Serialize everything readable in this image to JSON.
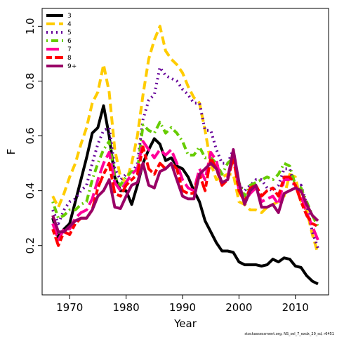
{
  "chart_data": {
    "type": "line",
    "xlabel": "Year",
    "ylabel": "F",
    "footnote": "stockassessment.org, NS_sel_7_exdx_20_sd, r6451",
    "legend": "topleft",
    "x": [
      1967,
      1968,
      1969,
      1970,
      1971,
      1972,
      1973,
      1974,
      1975,
      1976,
      1977,
      1978,
      1979,
      1980,
      1981,
      1982,
      1983,
      1984,
      1985,
      1986,
      1987,
      1988,
      1989,
      1990,
      1991,
      1992,
      1993,
      1994,
      1995,
      1996,
      1997,
      1998,
      1999,
      2000,
      2001,
      2002,
      2003,
      2004,
      2005,
      2006,
      2007,
      2008,
      2009,
      2010,
      2011,
      2012,
      2013,
      2014
    ],
    "xlim": [
      1965.12,
      2015.88
    ],
    "xticks": [
      1970,
      1980,
      1990,
      2000,
      2010
    ],
    "ylim": [
      0.02,
      1.065
    ],
    "yticks": [
      0.2,
      0.4,
      0.6,
      0.8,
      {
        "value": 1,
        "label": "1.0"
      }
    ],
    "series": [
      {
        "name": "3",
        "color": "#000000",
        "dash": "solid",
        "values": [
          0.3,
          0.23,
          0.26,
          0.28,
          0.36,
          0.44,
          0.52,
          0.61,
          0.63,
          0.71,
          0.6,
          0.45,
          0.4,
          0.4,
          0.35,
          0.42,
          0.5,
          0.55,
          0.59,
          0.57,
          0.51,
          0.52,
          0.49,
          0.48,
          0.45,
          0.4,
          0.36,
          0.29,
          0.25,
          0.21,
          0.18,
          0.18,
          0.175,
          0.14,
          0.13,
          0.13,
          0.13,
          0.125,
          0.13,
          0.15,
          0.14,
          0.155,
          0.15,
          0.125,
          0.12,
          0.09,
          0.07,
          0.06
        ]
      },
      {
        "name": "4",
        "color": "#ffcc00",
        "dash": "dashed",
        "values": [
          0.38,
          0.34,
          0.39,
          0.45,
          0.5,
          0.57,
          0.63,
          0.72,
          0.76,
          0.86,
          0.76,
          0.55,
          0.45,
          0.43,
          0.5,
          0.6,
          0.75,
          0.88,
          0.95,
          1.0,
          0.91,
          0.88,
          0.86,
          0.83,
          0.78,
          0.74,
          0.72,
          0.62,
          0.5,
          0.44,
          0.45,
          0.46,
          0.46,
          0.36,
          0.35,
          0.33,
          0.33,
          0.32,
          0.34,
          0.35,
          0.36,
          0.38,
          0.46,
          0.45,
          0.36,
          0.33,
          0.24,
          0.17
        ]
      },
      {
        "name": "5",
        "color": "#660099",
        "dash": "dotted",
        "values": [
          0.33,
          0.28,
          0.33,
          0.36,
          0.37,
          0.4,
          0.42,
          0.5,
          0.57,
          0.62,
          0.63,
          0.48,
          0.44,
          0.46,
          0.46,
          0.5,
          0.66,
          0.73,
          0.75,
          0.85,
          0.82,
          0.81,
          0.8,
          0.77,
          0.75,
          0.72,
          0.72,
          0.62,
          0.62,
          0.55,
          0.5,
          0.5,
          0.55,
          0.42,
          0.4,
          0.42,
          0.44,
          0.44,
          0.41,
          0.4,
          0.42,
          0.48,
          0.48,
          0.4,
          0.42,
          0.35,
          0.25,
          0.19
        ]
      },
      {
        "name": "6",
        "color": "#66cc00",
        "dash": "dotdash",
        "values": [
          0.36,
          0.3,
          0.31,
          0.33,
          0.33,
          0.35,
          0.36,
          0.44,
          0.5,
          0.55,
          0.58,
          0.45,
          0.42,
          0.45,
          0.47,
          0.47,
          0.64,
          0.62,
          0.61,
          0.65,
          0.61,
          0.63,
          0.61,
          0.58,
          0.53,
          0.53,
          0.56,
          0.52,
          0.52,
          0.5,
          0.46,
          0.5,
          0.52,
          0.43,
          0.38,
          0.42,
          0.43,
          0.44,
          0.45,
          0.44,
          0.46,
          0.5,
          0.49,
          0.42,
          0.41,
          0.36,
          0.31,
          0.27
        ]
      },
      {
        "name": "7",
        "color": "#ff0099",
        "dash": "longdash",
        "values": [
          0.28,
          0.22,
          0.26,
          0.26,
          0.3,
          0.32,
          0.33,
          0.37,
          0.44,
          0.5,
          0.54,
          0.43,
          0.4,
          0.43,
          0.46,
          0.48,
          0.58,
          0.55,
          0.52,
          0.55,
          0.53,
          0.55,
          0.5,
          0.44,
          0.41,
          0.4,
          0.48,
          0.44,
          0.54,
          0.51,
          0.42,
          0.45,
          0.54,
          0.4,
          0.36,
          0.39,
          0.41,
          0.36,
          0.37,
          0.38,
          0.35,
          0.44,
          0.44,
          0.42,
          0.38,
          0.32,
          0.27,
          0.22
        ]
      },
      {
        "name": "8",
        "color": "#ff0000",
        "dash": "twodash",
        "values": [
          0.26,
          0.2,
          0.25,
          0.24,
          0.28,
          0.3,
          0.3,
          0.33,
          0.41,
          0.46,
          0.5,
          0.39,
          0.38,
          0.42,
          0.44,
          0.46,
          0.56,
          0.48,
          0.46,
          0.5,
          0.48,
          0.5,
          0.48,
          0.4,
          0.39,
          0.39,
          0.46,
          0.4,
          0.52,
          0.48,
          0.42,
          0.44,
          0.52,
          0.4,
          0.36,
          0.41,
          0.42,
          0.38,
          0.4,
          0.41,
          0.38,
          0.45,
          0.45,
          0.42,
          0.36,
          0.31,
          0.28,
          0.27
        ]
      },
      {
        "name": "9+",
        "color": "#990066",
        "dash": "solid",
        "values": [
          0.31,
          0.25,
          0.25,
          0.27,
          0.29,
          0.3,
          0.3,
          0.33,
          0.38,
          0.4,
          0.44,
          0.34,
          0.335,
          0.38,
          0.42,
          0.43,
          0.5,
          0.42,
          0.41,
          0.47,
          0.48,
          0.5,
          0.44,
          0.38,
          0.37,
          0.37,
          0.46,
          0.48,
          0.5,
          0.48,
          0.43,
          0.44,
          0.55,
          0.43,
          0.35,
          0.4,
          0.42,
          0.34,
          0.34,
          0.35,
          0.32,
          0.39,
          0.4,
          0.41,
          0.4,
          0.35,
          0.31,
          0.29
        ]
      }
    ]
  }
}
